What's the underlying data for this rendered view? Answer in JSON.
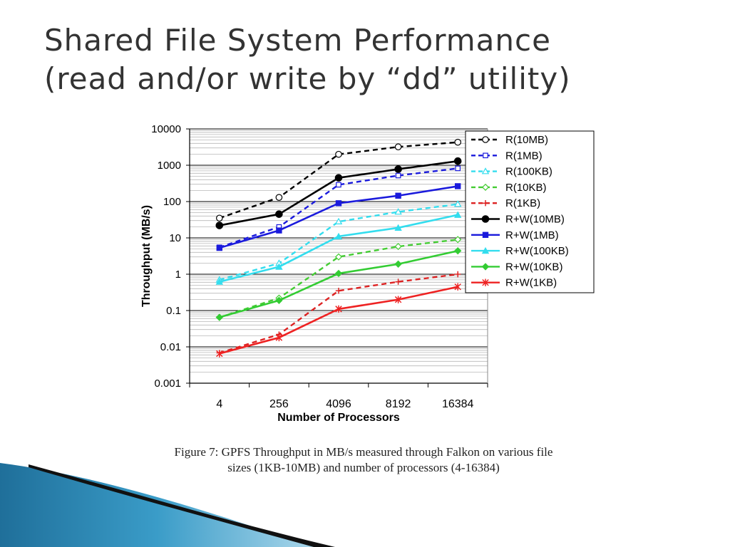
{
  "slide": {
    "title_line1": "Shared File System Performance",
    "title_line2": "(read and/or write by “dd” utility)"
  },
  "caption": {
    "line1": "Figure 7: GPFS Throughput in MB/s measured through Falkon on various file",
    "line2": "sizes (1KB-10MB) and number of processors (4-16384)"
  },
  "chart_data": {
    "type": "line",
    "title": "",
    "xlabel": "Number of Processors",
    "ylabel": "Throughput (MB/s)",
    "categories": [
      "4",
      "256",
      "4096",
      "8192",
      "16384"
    ],
    "y_scale": "log",
    "ylim": [
      0.001,
      10000
    ],
    "y_ticks": [
      "0.001",
      "0.01",
      "0.1",
      "1",
      "10",
      "100",
      "1000",
      "10000"
    ],
    "grid": true,
    "legend_position": "top-right",
    "series": [
      {
        "name": "R(10MB)",
        "color": "#000000",
        "dashed": true,
        "marker": "circle-open",
        "values": [
          35,
          130,
          2000,
          3200,
          4300
        ]
      },
      {
        "name": "R(1MB)",
        "color": "#1a1adc",
        "dashed": true,
        "marker": "square-open",
        "values": [
          5.5,
          20,
          290,
          520,
          820
        ]
      },
      {
        "name": "R(100KB)",
        "color": "#33ddee",
        "dashed": true,
        "marker": "triangle-open",
        "values": [
          0.7,
          2.0,
          28,
          52,
          85
        ]
      },
      {
        "name": "R(10KB)",
        "color": "#44cc33",
        "dashed": true,
        "marker": "diamond-open",
        "values": [
          0.065,
          0.22,
          3.0,
          5.8,
          9.0
        ]
      },
      {
        "name": "R(1KB)",
        "color": "#dd2222",
        "dashed": true,
        "marker": "plus",
        "values": [
          0.0068,
          0.022,
          0.35,
          0.62,
          1.0
        ]
      },
      {
        "name": "R+W(10MB)",
        "color": "#000000",
        "dashed": false,
        "marker": "circle",
        "values": [
          22,
          45,
          450,
          780,
          1300
        ]
      },
      {
        "name": "R+W(1MB)",
        "color": "#1a1adc",
        "dashed": false,
        "marker": "square",
        "values": [
          5.3,
          16,
          90,
          145,
          265
        ]
      },
      {
        "name": "R+W(100KB)",
        "color": "#33ddee",
        "dashed": false,
        "marker": "triangle",
        "values": [
          0.62,
          1.6,
          11,
          19,
          43
        ]
      },
      {
        "name": "R+W(10KB)",
        "color": "#33cc33",
        "dashed": false,
        "marker": "diamond",
        "values": [
          0.065,
          0.19,
          1.05,
          1.9,
          4.4
        ]
      },
      {
        "name": "R+W(1KB)",
        "color": "#ee2222",
        "dashed": false,
        "marker": "star",
        "values": [
          0.0065,
          0.018,
          0.11,
          0.2,
          0.45
        ]
      }
    ]
  }
}
